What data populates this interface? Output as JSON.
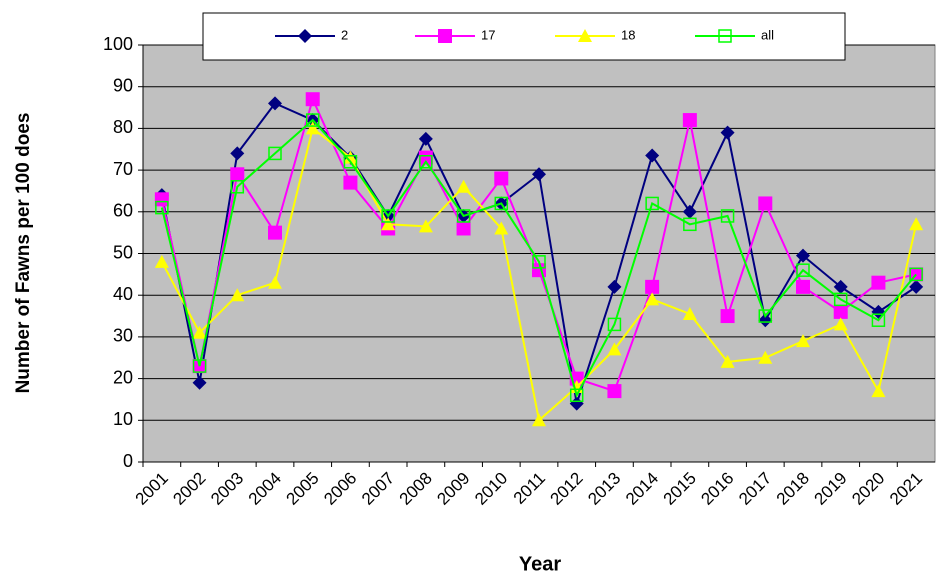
{
  "chart_data": {
    "type": "line",
    "x_label": "Year",
    "y_label": "Number of Fawns per 100 does",
    "categories": [
      "2001",
      "2002",
      "2003",
      "2004",
      "2005",
      "2006",
      "2007",
      "2008",
      "2009",
      "2010",
      "2011",
      "2012",
      "2013",
      "2014",
      "2015",
      "2016",
      "2017",
      "2018",
      "2019",
      "2020",
      "2021"
    ],
    "series": [
      {
        "name": "2",
        "color": "#000080",
        "marker": "diamond",
        "values": [
          64,
          19,
          74,
          86,
          82,
          73,
          59,
          77.5,
          59,
          62,
          69,
          14,
          42,
          73.5,
          60,
          79,
          34,
          49.5,
          42,
          36,
          42
        ]
      },
      {
        "name": "17",
        "color": "#ff00ff",
        "marker": "square",
        "values": [
          63,
          23,
          69,
          55,
          87,
          67,
          56,
          73,
          56,
          68,
          46,
          20,
          17,
          42,
          82,
          35,
          62,
          42,
          36,
          43,
          45
        ]
      },
      {
        "name": "18",
        "color": "#ffff00",
        "marker": "triangle",
        "values": [
          48,
          31,
          40,
          43,
          80,
          73,
          57,
          56.5,
          66,
          56,
          10,
          18,
          27,
          39,
          35.5,
          24,
          25,
          29,
          33,
          17,
          57
        ]
      },
      {
        "name": "all",
        "color": "#00ff00",
        "marker": "hollow-square",
        "values": [
          61,
          23,
          66,
          74,
          82,
          72,
          59,
          72,
          59,
          62,
          48,
          16,
          33,
          62,
          57,
          59,
          35,
          46,
          39,
          34,
          45
        ]
      }
    ],
    "ylim": [
      0,
      100
    ],
    "yticks": [
      0,
      10,
      20,
      30,
      40,
      50,
      60,
      70,
      80,
      90,
      100
    ],
    "grid": true
  }
}
